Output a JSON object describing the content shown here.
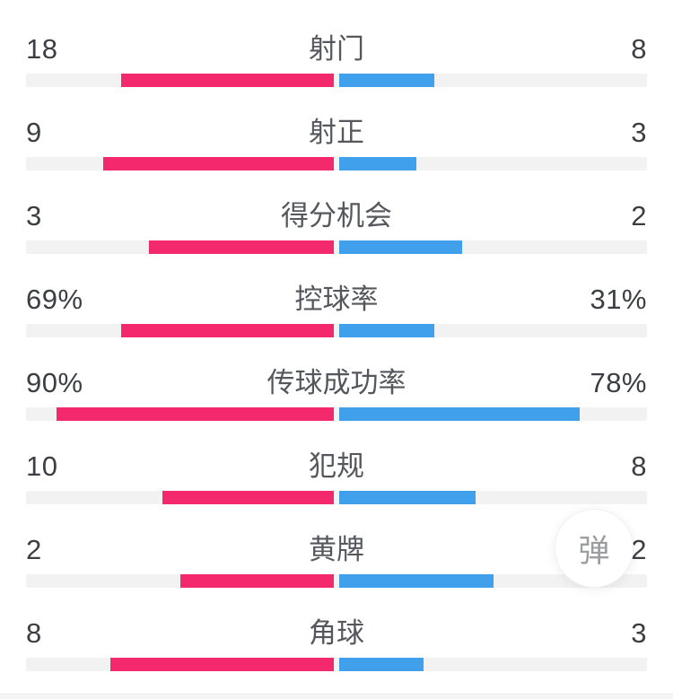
{
  "colors": {
    "home_bar": "#f4286d",
    "away_bar": "#40a0eb",
    "bar_track": "#f2f2f3",
    "value_text": "#3b3e42",
    "label_text": "#54575c",
    "background": "#ffffff"
  },
  "chart_data": {
    "type": "bar",
    "orientation": "horizontal-paired",
    "description": "Football match statistics, home (pink, left) vs away (blue, right); bars grow outward from center, length proportional to share (counts) or percent value",
    "categories": [
      "射门",
      "射正",
      "得分机会",
      "控球率",
      "传球成功率",
      "犯规",
      "黄牌",
      "角球"
    ],
    "series": [
      {
        "name": "home",
        "color": "#f4286d",
        "values": [
          18,
          9,
          3,
          69,
          90,
          10,
          2,
          8
        ]
      },
      {
        "name": "away",
        "color": "#40a0eb",
        "values": [
          8,
          3,
          2,
          31,
          78,
          8,
          2,
          3
        ]
      }
    ],
    "percent_categories": [
      "控球率",
      "传球成功率"
    ],
    "legend": "none",
    "grid": false,
    "rows": [
      {
        "label": "射门",
        "left": "18",
        "right": "8"
      },
      {
        "label": "射正",
        "left": "9",
        "right": "3"
      },
      {
        "label": "得分机会",
        "left": "3",
        "right": "2"
      },
      {
        "label": "控球率",
        "left": "69%",
        "right": "31%"
      },
      {
        "label": "传球成功率",
        "left": "90%",
        "right": "78%"
      },
      {
        "label": "犯规",
        "left": "10",
        "right": "8"
      },
      {
        "label": "黄牌",
        "left": "2",
        "right": "2"
      },
      {
        "label": "角球",
        "left": "8",
        "right": "3"
      }
    ]
  },
  "overlay": {
    "danmaku_button_label": "弹"
  }
}
